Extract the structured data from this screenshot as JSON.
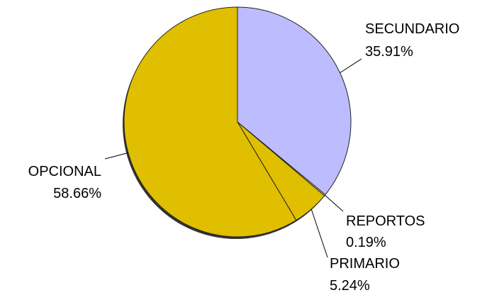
{
  "chart_data": {
    "type": "pie",
    "title": "",
    "slices": [
      {
        "label": "SECUNDARIO",
        "percent_label": "35.91%",
        "value": 35.91,
        "color": "#bcbcfe"
      },
      {
        "label": "REPORTOS",
        "percent_label": "0.19%",
        "value": 0.19,
        "color": "#f4ecae"
      },
      {
        "label": "PRIMARIO",
        "percent_label": "5.24%",
        "value": 5.24,
        "color": "#e0bf00"
      },
      {
        "label": "OPCIONAL",
        "percent_label": "58.66%",
        "value": 58.66,
        "color": "#e0bf00"
      }
    ],
    "legend": "none"
  }
}
